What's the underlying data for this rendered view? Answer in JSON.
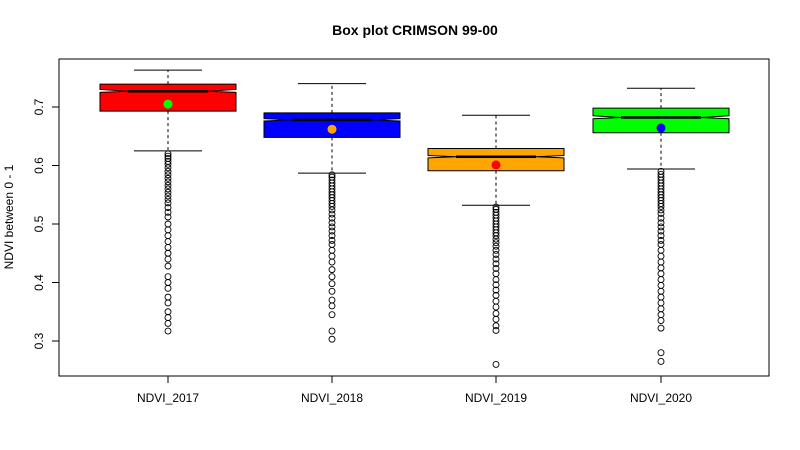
{
  "chart_data": {
    "type": "box",
    "title": "Box plot CRIMSON 99-00",
    "xlabel": "",
    "ylabel": "NDVI between 0 - 1",
    "ylim": [
      0.24,
      0.79
    ],
    "yticks": [
      0.3,
      0.4,
      0.5,
      0.6,
      0.7
    ],
    "ytick_labels": [
      "0.3",
      "0.4",
      "0.5",
      "0.6",
      "0.7"
    ],
    "notched": true,
    "grid": false,
    "categories": [
      "NDVI_2017",
      "NDVI_2018",
      "NDVI_2019",
      "NDVI_2020"
    ],
    "series": [
      {
        "fill": "#ff0000",
        "mean_color": "#00ff00",
        "whisker_low": 0.625,
        "q1": 0.693,
        "median": 0.727,
        "q3": 0.739,
        "whisker_high": 0.763,
        "notch_low": 0.725,
        "notch_high": 0.73,
        "mean": 0.705,
        "outliers": [
          0.62,
          0.616,
          0.612,
          0.607,
          0.602,
          0.596,
          0.59,
          0.584,
          0.578,
          0.572,
          0.566,
          0.56,
          0.554,
          0.548,
          0.542,
          0.536,
          0.528,
          0.52,
          0.512,
          0.5,
          0.49,
          0.48,
          0.47,
          0.46,
          0.45,
          0.44,
          0.428,
          0.41,
          0.4,
          0.39,
          0.375,
          0.365,
          0.35,
          0.34,
          0.33,
          0.317
        ]
      },
      {
        "fill": "#0000ff",
        "mean_color": "#ffa500",
        "whisker_low": 0.587,
        "q1": 0.648,
        "median": 0.678,
        "q3": 0.69,
        "whisker_high": 0.74,
        "notch_low": 0.676,
        "notch_high": 0.68,
        "mean": 0.662,
        "outliers": [
          0.584,
          0.58,
          0.575,
          0.57,
          0.565,
          0.56,
          0.555,
          0.55,
          0.545,
          0.54,
          0.535,
          0.53,
          0.524,
          0.517,
          0.51,
          0.502,
          0.495,
          0.488,
          0.48,
          0.472,
          0.465,
          0.455,
          0.445,
          0.435,
          0.422,
          0.41,
          0.398,
          0.385,
          0.37,
          0.36,
          0.345,
          0.317,
          0.303
        ]
      },
      {
        "fill": "#ffa500",
        "mean_color": "#ff0000",
        "whisker_low": 0.532,
        "q1": 0.591,
        "median": 0.615,
        "q3": 0.629,
        "whisker_high": 0.686,
        "notch_low": 0.613,
        "notch_high": 0.617,
        "mean": 0.601,
        "outliers": [
          0.529,
          0.525,
          0.52,
          0.515,
          0.51,
          0.505,
          0.5,
          0.495,
          0.49,
          0.485,
          0.48,
          0.474,
          0.468,
          0.462,
          0.455,
          0.448,
          0.44,
          0.432,
          0.424,
          0.415,
          0.405,
          0.396,
          0.387,
          0.378,
          0.368,
          0.358,
          0.347,
          0.337,
          0.326,
          0.318,
          0.26
        ]
      },
      {
        "fill": "#00ff00",
        "mean_color": "#0000ff",
        "whisker_low": 0.594,
        "q1": 0.656,
        "median": 0.682,
        "q3": 0.698,
        "whisker_high": 0.732,
        "notch_low": 0.68,
        "notch_high": 0.685,
        "mean": 0.664,
        "outliers": [
          0.59,
          0.585,
          0.58,
          0.575,
          0.57,
          0.565,
          0.56,
          0.555,
          0.55,
          0.545,
          0.54,
          0.535,
          0.53,
          0.524,
          0.518,
          0.51,
          0.502,
          0.495,
          0.488,
          0.48,
          0.472,
          0.465,
          0.455,
          0.445,
          0.435,
          0.425,
          0.415,
          0.405,
          0.395,
          0.385,
          0.375,
          0.365,
          0.355,
          0.345,
          0.335,
          0.322,
          0.28,
          0.265
        ]
      }
    ]
  }
}
